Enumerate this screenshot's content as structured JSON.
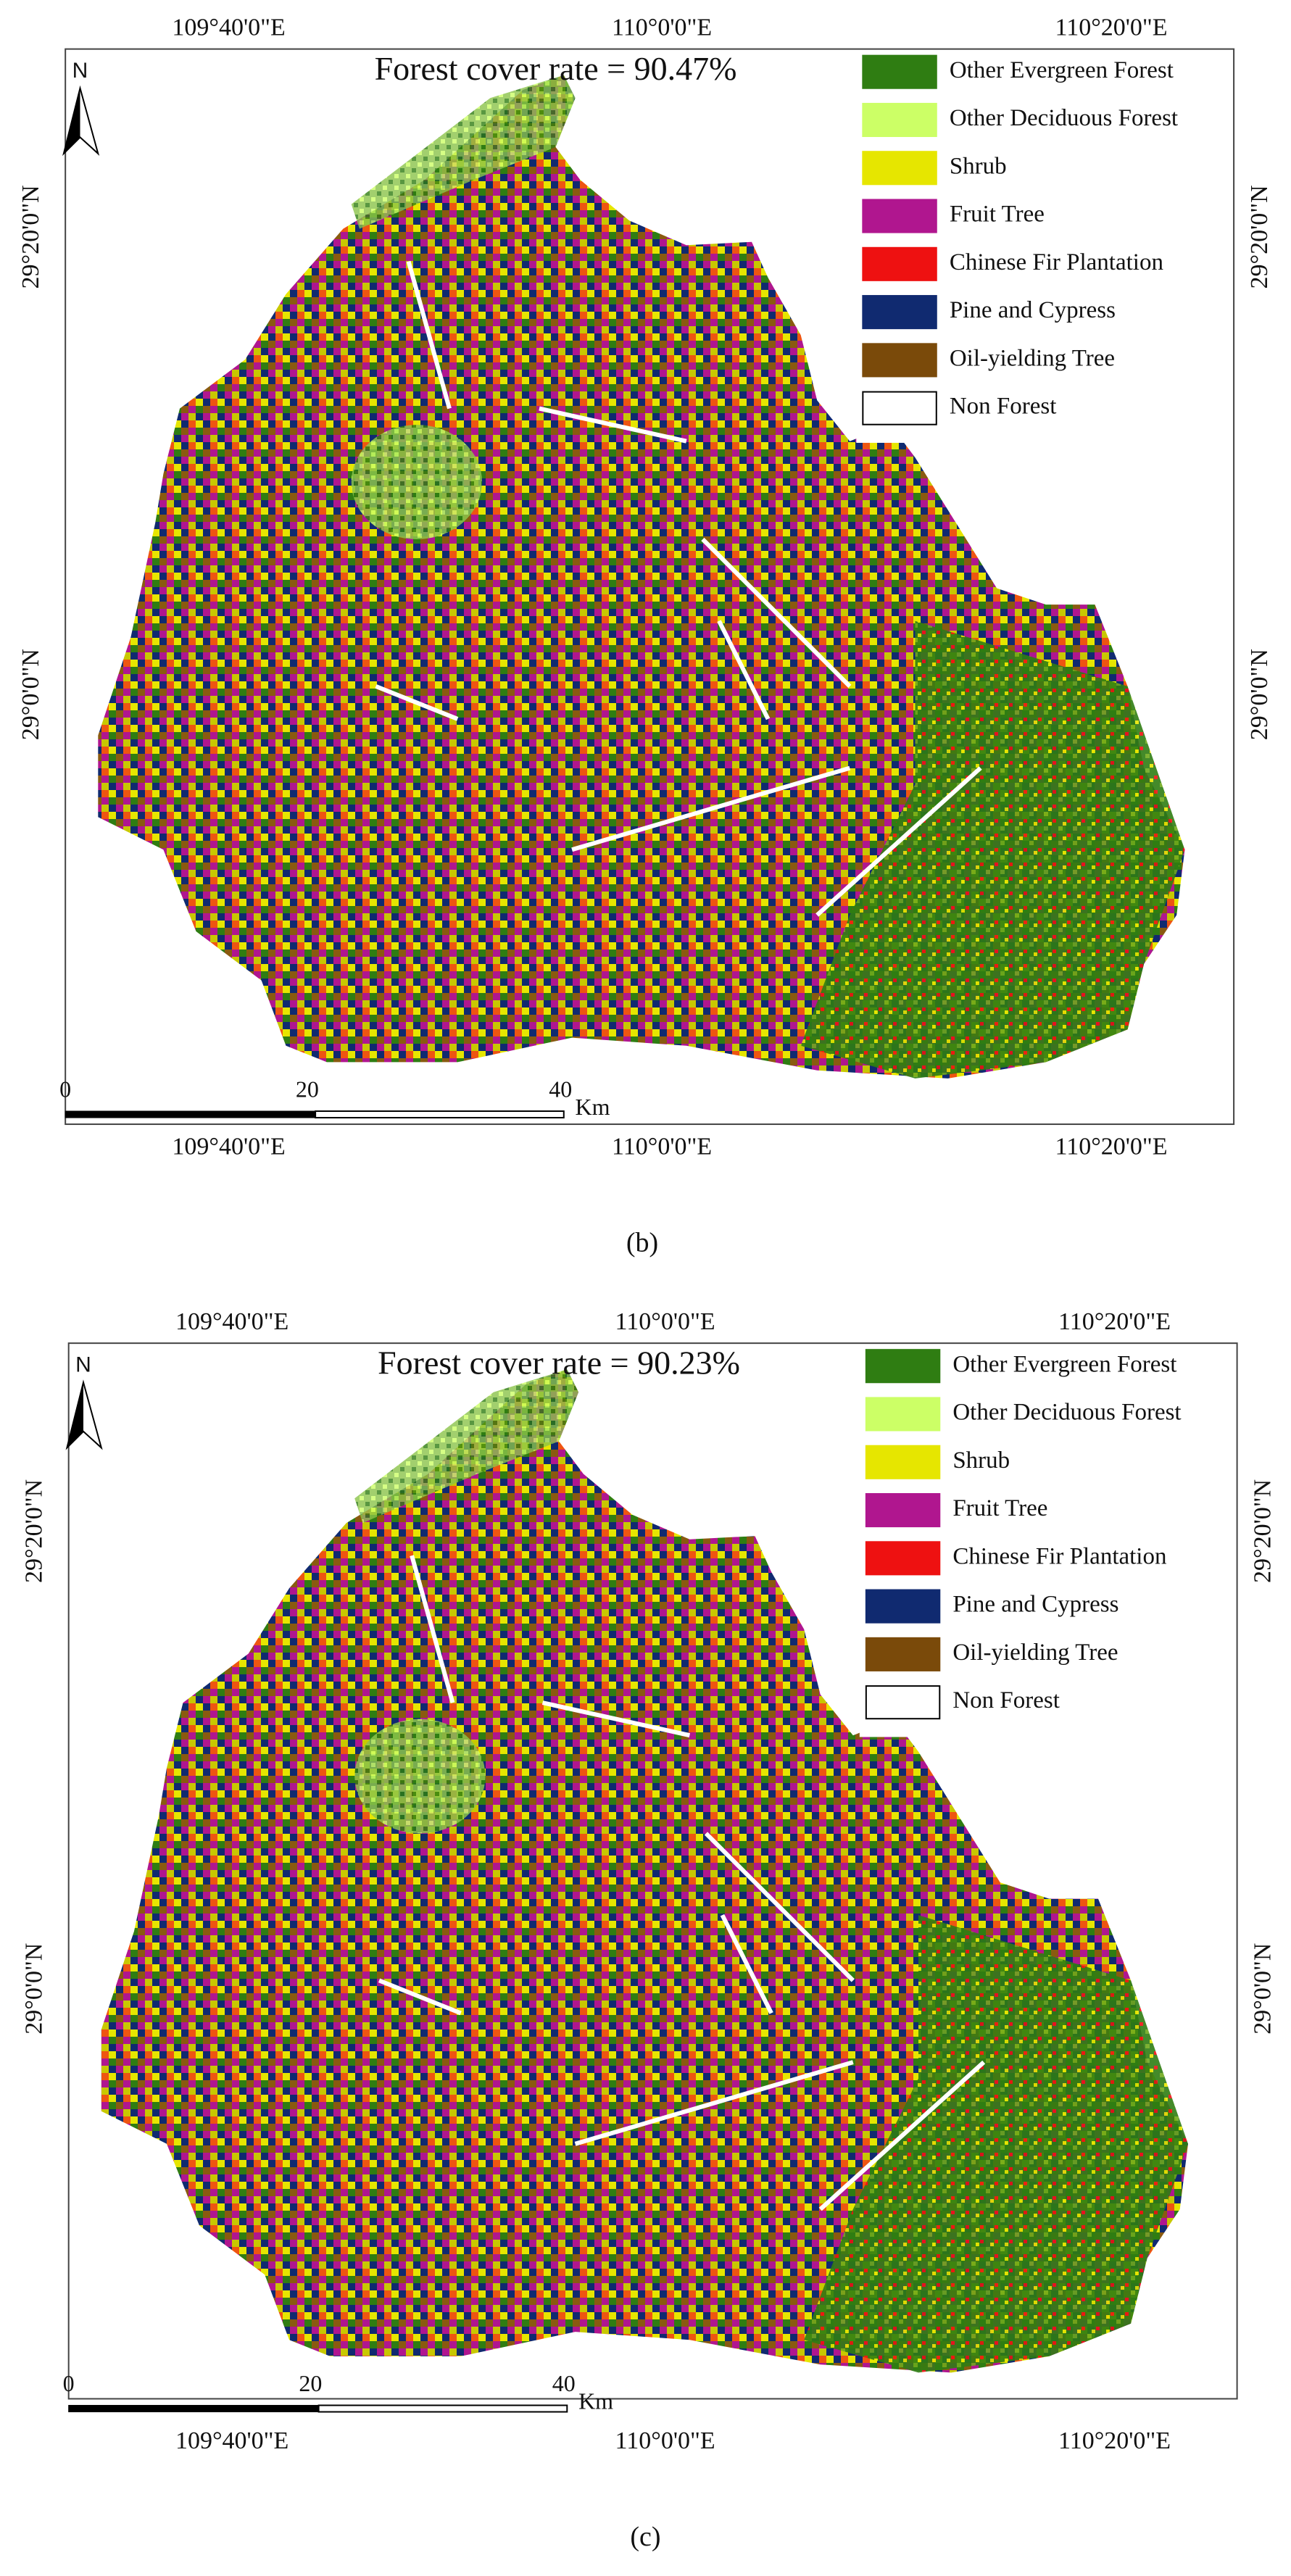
{
  "panels": [
    {
      "caption": "(b)",
      "title": "Forest cover rate = 90.47%",
      "north": "N",
      "top_labels": [
        "109°40'0\"E",
        "110°0'0\"E",
        "110°20'0\"E"
      ],
      "bottom_labels": [
        "109°40'0\"E",
        "110°0'0\"E",
        "110°20'0\"E"
      ],
      "left_labels": [
        "29°20'0\"N",
        "29°0'0\"N"
      ],
      "right_labels": [
        "29°20'0\"N",
        "29°0'0\"N"
      ],
      "scale": {
        "ticks": [
          "0",
          "20",
          "40"
        ],
        "unit": "Km"
      },
      "legend": [
        {
          "label": "Other Evergreen Forest",
          "color": "#2f7d12"
        },
        {
          "label": "Other Deciduous Forest",
          "color": "#ccff66"
        },
        {
          "label": "Shrub",
          "color": "#e6e600"
        },
        {
          "label": "Fruit Tree",
          "color": "#b0168f"
        },
        {
          "label": "Chinese Fir Plantation",
          "color": "#ee1111"
        },
        {
          "label": "Pine and Cypress",
          "color": "#102a70"
        },
        {
          "label": "Oil-yielding Tree",
          "color": "#7a4a0a"
        },
        {
          "label": "Non Forest",
          "color": "#ffffff"
        }
      ]
    },
    {
      "caption": "(c)",
      "title": "Forest cover rate = 90.23%",
      "north": "N",
      "top_labels": [
        "109°40'0\"E",
        "110°0'0\"E",
        "110°20'0\"E"
      ],
      "bottom_labels": [
        "109°40'0\"E",
        "110°0'0\"E",
        "110°20'0\"E"
      ],
      "left_labels": [
        "29°20'0\"N",
        "29°0'0\"N"
      ],
      "right_labels": [
        "29°20'0\"N",
        "29°0'0\"N"
      ],
      "scale": {
        "ticks": [
          "0",
          "20",
          "40"
        ],
        "unit": "Km"
      },
      "legend": [
        {
          "label": "Other Evergreen Forest",
          "color": "#2f7d12"
        },
        {
          "label": "Other Deciduous Forest",
          "color": "#ccff66"
        },
        {
          "label": "Shrub",
          "color": "#e6e600"
        },
        {
          "label": "Fruit Tree",
          "color": "#b0168f"
        },
        {
          "label": "Chinese Fir Plantation",
          "color": "#ee1111"
        },
        {
          "label": "Pine and Cypress",
          "color": "#102a70"
        },
        {
          "label": "Oil-yielding Tree",
          "color": "#7a4a0a"
        },
        {
          "label": "Non Forest",
          "color": "#ffffff"
        }
      ]
    }
  ]
}
